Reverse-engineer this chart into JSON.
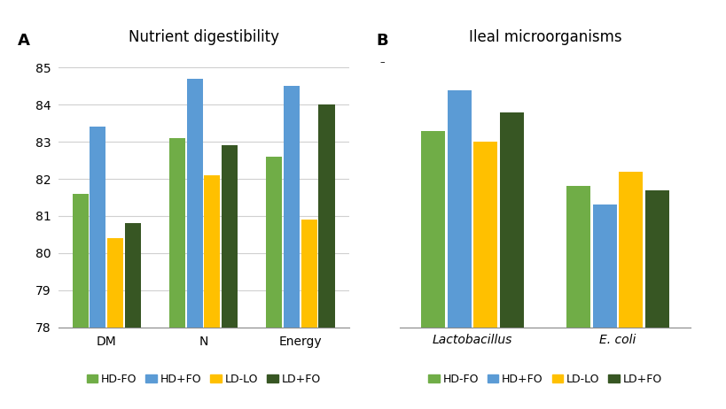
{
  "chart_A": {
    "title": "Nutrient digestibility",
    "panel_label": "A",
    "categories": [
      "DM",
      "N",
      "Energy"
    ],
    "series": {
      "HD-FO": [
        81.6,
        83.1,
        82.6
      ],
      "HD+FO": [
        83.4,
        84.7,
        84.5
      ],
      "LD-LO": [
        80.4,
        82.1,
        80.9
      ],
      "LD+FO": [
        80.8,
        82.9,
        84.0
      ]
    },
    "ylim": [
      78,
      85.5
    ],
    "ybase": 78,
    "yticks": [
      78,
      79,
      80,
      81,
      82,
      83,
      84,
      85
    ]
  },
  "chart_B": {
    "title": "Ileal microorganisms",
    "panel_label": "B",
    "categories": [
      "Lactobacillus",
      "E. coli"
    ],
    "series": {
      "HD-FO": [
        83.3,
        81.8
      ],
      "HD+FO": [
        84.4,
        81.3
      ],
      "LD-LO": [
        83.0,
        82.2
      ],
      "LD+FO": [
        83.8,
        81.7
      ]
    },
    "ylim": [
      78,
      85.5
    ],
    "ybase": 78,
    "yticks": []
  },
  "colors": {
    "HD-FO": "#70AD47",
    "HD+FO": "#5B9BD5",
    "LD-LO": "#FFC000",
    "LD+FO": "#375623"
  },
  "legend_labels": [
    "HD-FO",
    "HD+FO",
    "LD-LO",
    "LD+FO"
  ],
  "bar_width": 0.18,
  "background_color": "#FFFFFF",
  "grid_color": "#D0D0D0"
}
